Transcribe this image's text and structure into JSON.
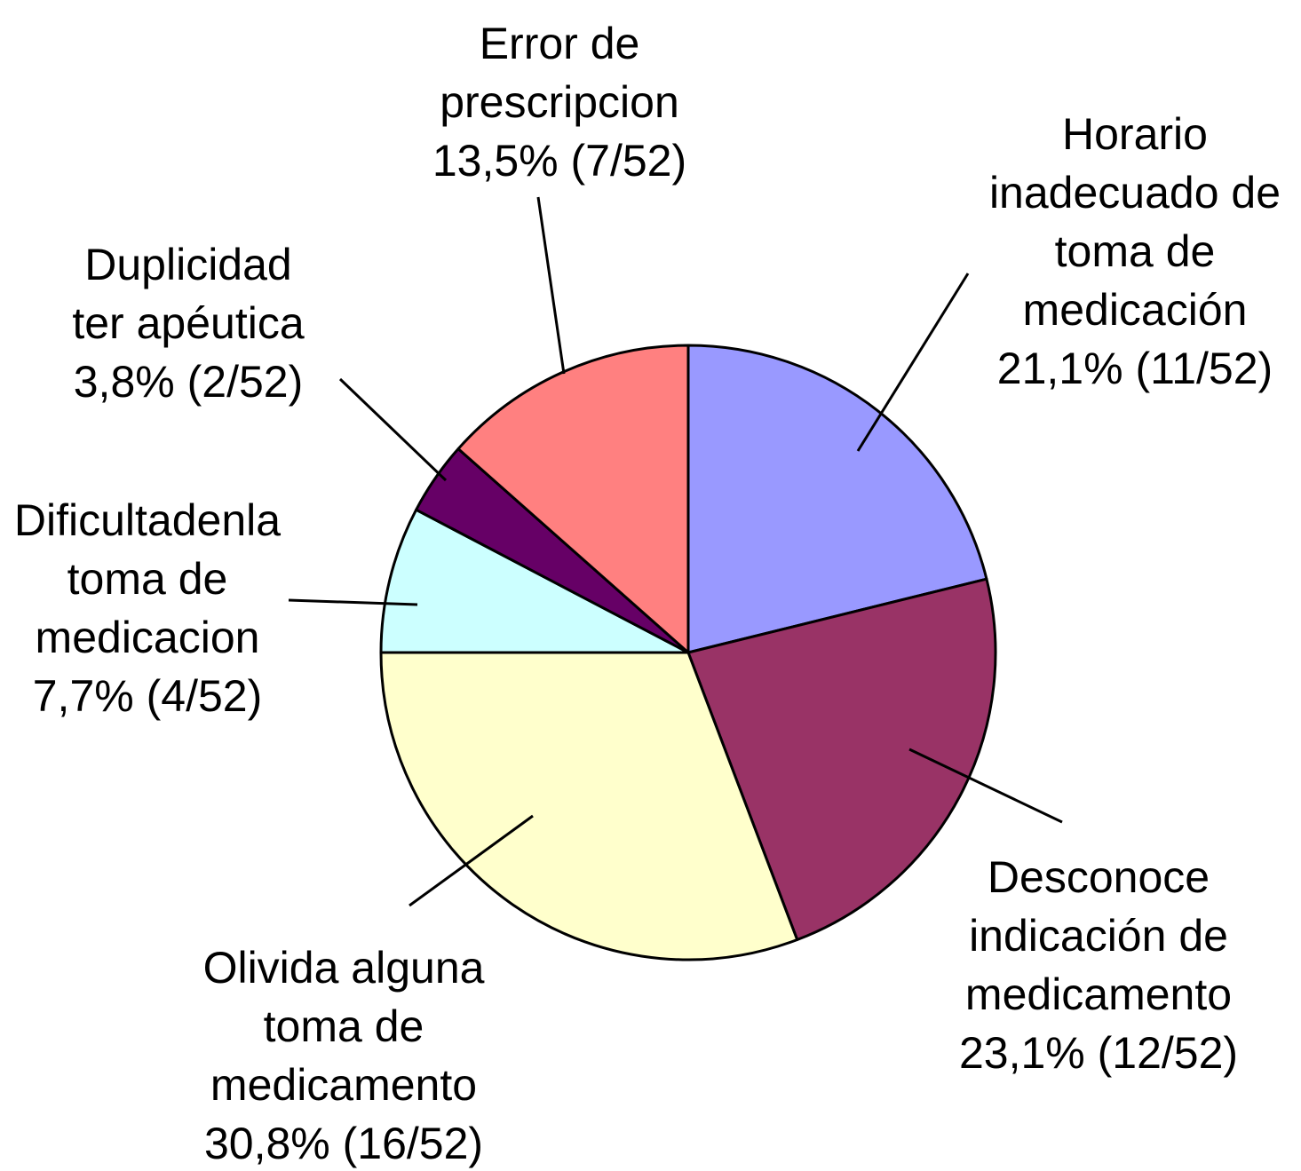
{
  "chart_data": {
    "type": "pie",
    "total": 52,
    "slices": [
      {
        "name": "Horario inadecuado de toma de medicación",
        "count": 11,
        "percent": 21.1,
        "color": "#9999FF",
        "label_lines": [
          "Horario",
          "inadecuado de",
          "toma de",
          "medicación",
          "21,1% (11/52)"
        ]
      },
      {
        "name": "Desconoce indicación de medicamento",
        "count": 12,
        "percent": 23.1,
        "color": "#993366",
        "label_lines": [
          "Desconoce",
          "indicación de",
          "medicamento",
          "23,1% (12/52)"
        ]
      },
      {
        "name": "Olivida alguna toma de medicamento",
        "count": 16,
        "percent": 30.8,
        "color": "#FFFFCC",
        "label_lines": [
          "Olivida alguna",
          "toma de",
          "medicamento",
          "30,8% (16/52)"
        ]
      },
      {
        "name": "Dificultadenla toma de medicacion",
        "count": 4,
        "percent": 7.7,
        "color": "#CCFFFF",
        "label_lines": [
          "Dificultadenla",
          "toma de",
          "medicacion",
          "7,7% (4/52)"
        ]
      },
      {
        "name": "Duplicidad ter apéutica",
        "count": 2,
        "percent": 3.8,
        "color": "#660066",
        "label_lines": [
          "Duplicidad",
          "ter apéutica",
          "3,8% (2/52)"
        ]
      },
      {
        "name": "Error de prescripcion",
        "count": 7,
        "percent": 13.5,
        "color": "#FF8080",
        "label_lines": [
          "Error de",
          "prescripcion",
          "13,5% (7/52)"
        ]
      }
    ],
    "start_angle": "12 o'clock",
    "direction": "clockwise",
    "legend": "none"
  }
}
